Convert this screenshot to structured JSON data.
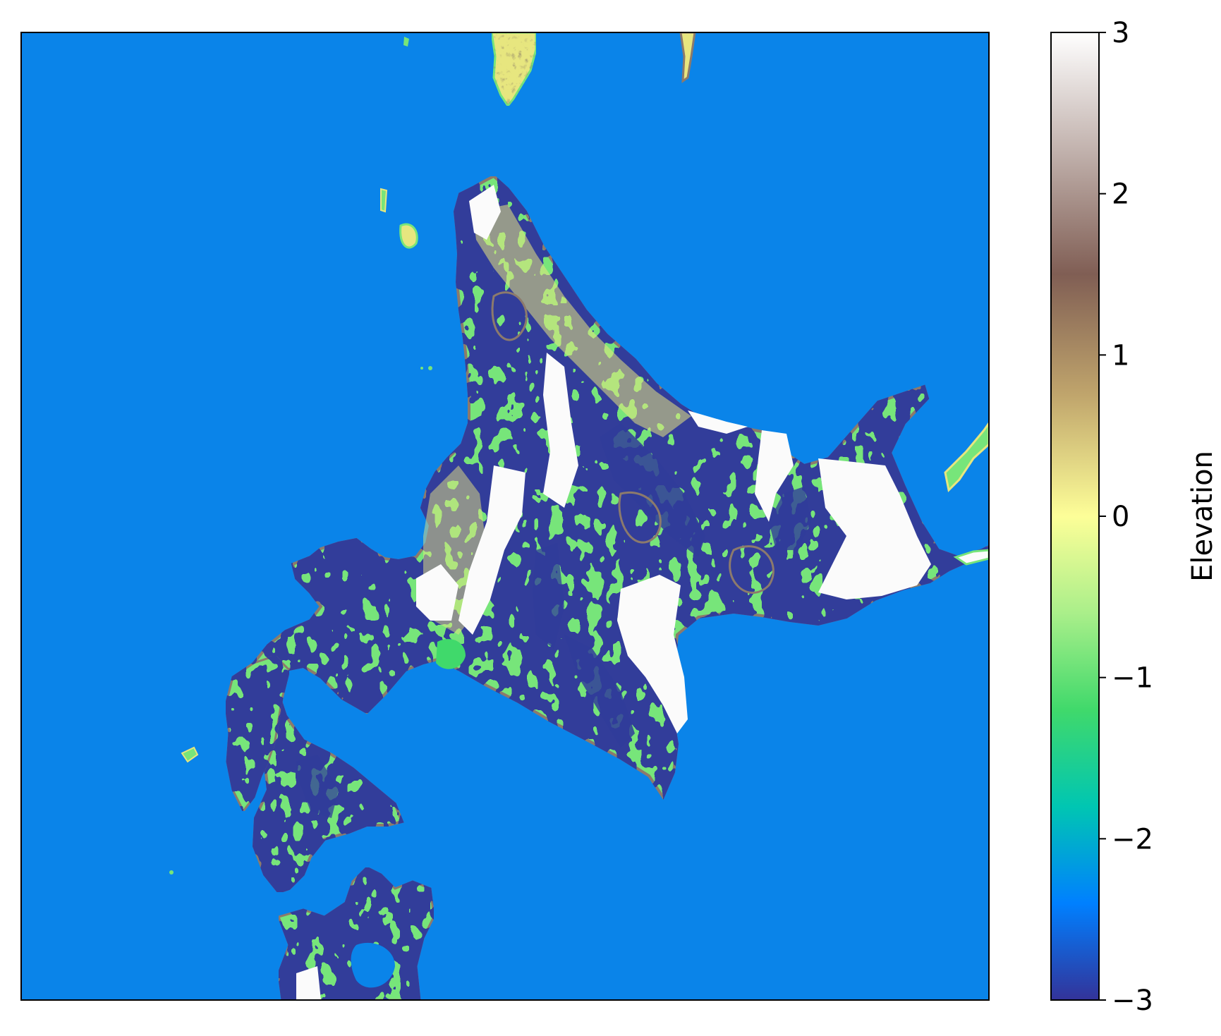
{
  "map": {
    "projection": "none",
    "frame": "black border, no axis ticks",
    "background_color": "#0a84e9",
    "land_palette": [
      "#77e57a",
      "#e7e67f",
      "#8c7a6c",
      "#fbfbfb",
      "#303c9a",
      "#1d6bd1"
    ],
    "regions": [
      {
        "name": "main-landmass"
      },
      {
        "name": "southwest-peninsula"
      },
      {
        "name": "southern-landmass"
      },
      {
        "name": "northern-island"
      },
      {
        "name": "northeast-islet"
      },
      {
        "name": "eastern-island"
      },
      {
        "name": "western-islet"
      },
      {
        "name": "small-islets"
      }
    ]
  },
  "colorbar": {
    "label": "Elevation",
    "min": -3,
    "max": 3,
    "ticks": [
      "3",
      "2",
      "1",
      "0",
      "−1",
      "−2",
      "−3"
    ],
    "tick_values": [
      3,
      2,
      1,
      0,
      -1,
      -2,
      -3
    ],
    "colormap": "terrain",
    "color_stops": [
      {
        "value": -3,
        "color": "#333399"
      },
      {
        "value": -2.4,
        "color": "#0080ff"
      },
      {
        "value": -1.8,
        "color": "#00c6b2"
      },
      {
        "value": -1.2,
        "color": "#40d96b"
      },
      {
        "value": -0.6,
        "color": "#aaef8a"
      },
      {
        "value": 0,
        "color": "#fdfe98"
      },
      {
        "value": 0.75,
        "color": "#c0a56c"
      },
      {
        "value": 1.5,
        "color": "#805e54"
      },
      {
        "value": 2.25,
        "color": "#c0b0ab"
      },
      {
        "value": 3,
        "color": "#ffffff"
      }
    ]
  }
}
